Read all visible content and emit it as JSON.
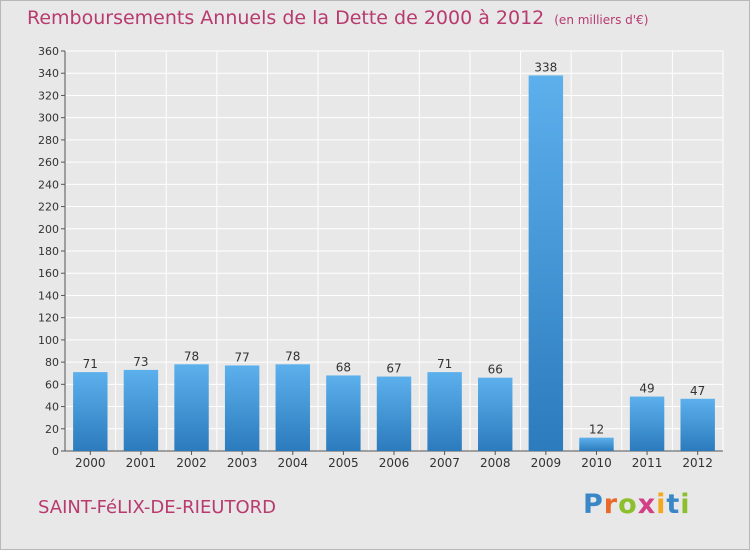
{
  "title": "Remboursements Annuels de la Dette de 2000 à 2012",
  "unit_note": "(en milliers d'€)",
  "commune": "SAINT-FéLIX-DE-RIEUTORD",
  "logo_text": "Proxiti",
  "colors": {
    "title": "#b83a6e",
    "bar_light": "#5aace8",
    "bar_dark": "#2f7fc2",
    "background": "#e8e8e8",
    "grid": "#ffffff"
  },
  "chart_data": {
    "type": "bar",
    "categories": [
      "2000",
      "2001",
      "2002",
      "2003",
      "2004",
      "2005",
      "2006",
      "2007",
      "2008",
      "2009",
      "2010",
      "2011",
      "2012"
    ],
    "values": [
      71,
      73,
      78,
      77,
      78,
      68,
      67,
      71,
      66,
      338,
      12,
      49,
      47
    ],
    "ylim": [
      0,
      360
    ],
    "yticks": [
      0,
      20,
      40,
      60,
      80,
      100,
      120,
      140,
      160,
      180,
      200,
      220,
      240,
      260,
      280,
      300,
      320,
      340,
      360
    ],
    "grid": true
  }
}
